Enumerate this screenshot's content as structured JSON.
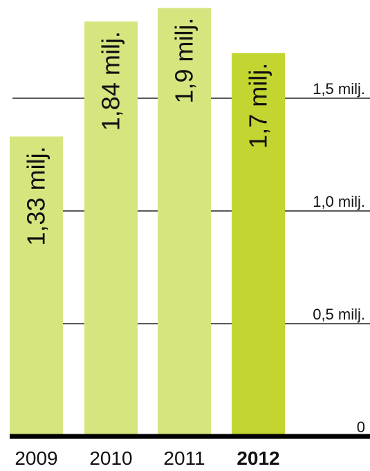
{
  "chart_data": {
    "type": "bar",
    "categories": [
      "2009",
      "2010",
      "2011",
      "2012"
    ],
    "values": [
      1.33,
      1.84,
      1.9,
      1.7
    ],
    "value_labels": [
      "1,33 milj.",
      "1,84 milj.",
      "1,9 milj.",
      "1,7 milj."
    ],
    "highlight_index": 3,
    "y_ticks": [
      {
        "value": 0,
        "label": "0"
      },
      {
        "value": 0.5,
        "label": "0,5 milj."
      },
      {
        "value": 1.0,
        "label": "1,0 milj."
      },
      {
        "value": 1.5,
        "label": "1,5 milj."
      }
    ],
    "ylim": [
      0,
      1.9
    ],
    "grid": true,
    "title": "",
    "xlabel": "",
    "ylabel": "",
    "colors": {
      "bar": "#d6e57e",
      "bar_highlight": "#c2d531",
      "grid": "#222222",
      "baseline": "#000000"
    }
  }
}
